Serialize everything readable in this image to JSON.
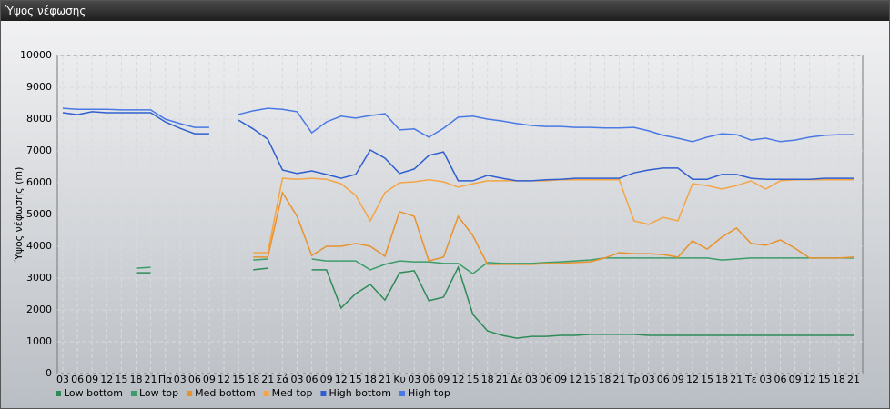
{
  "window": {
    "title": "Ύψος νέφωσης"
  },
  "chart_data": {
    "type": "line",
    "ylabel": "Ύψος νέφωσης (m)",
    "categories": [
      "03",
      "06",
      "09",
      "12",
      "15",
      "18",
      "21",
      "Πα",
      "03",
      "06",
      "09",
      "12",
      "15",
      "18",
      "21",
      "Σά",
      "03",
      "06",
      "09",
      "12",
      "15",
      "18",
      "21",
      "Κυ",
      "03",
      "06",
      "09",
      "12",
      "15",
      "18",
      "21",
      "Δε",
      "03",
      "06",
      "09",
      "12",
      "15",
      "18",
      "21",
      "Τρ",
      "03",
      "06",
      "09",
      "12",
      "15",
      "18",
      "21",
      "Τε",
      "03",
      "06",
      "09",
      "12",
      "15",
      "18",
      "21"
    ],
    "ylim": [
      0,
      10000
    ],
    "yticks": [
      0,
      1000,
      2000,
      3000,
      4000,
      5000,
      6000,
      7000,
      8000,
      9000,
      10000
    ],
    "grid": true,
    "series": [
      {
        "name": "Low bottom",
        "color": "#2e8b57",
        "values": [
          null,
          null,
          null,
          null,
          null,
          3170,
          3170,
          null,
          null,
          null,
          null,
          null,
          null,
          3260,
          3310,
          null,
          null,
          3260,
          3260,
          2060,
          2510,
          2800,
          2310,
          3170,
          3230,
          2290,
          2400,
          3340,
          1860,
          1340,
          1200,
          1110,
          1170,
          1170,
          1200,
          1200,
          1230,
          1230,
          1230,
          1230,
          1200,
          1200,
          1200,
          1200,
          1200,
          1200,
          1200,
          1200,
          1200,
          1200,
          1200,
          1200,
          1200,
          1200,
          1200
        ]
      },
      {
        "name": "Low top",
        "color": "#3a9d6a",
        "values": [
          null,
          null,
          null,
          null,
          null,
          3310,
          3340,
          null,
          null,
          null,
          null,
          null,
          null,
          3570,
          3600,
          null,
          null,
          3600,
          3540,
          3540,
          3540,
          3260,
          3430,
          3540,
          3510,
          3510,
          3460,
          3460,
          3140,
          3490,
          3460,
          3460,
          3460,
          3490,
          3510,
          3540,
          3570,
          3630,
          3630,
          3630,
          3630,
          3630,
          3630,
          3630,
          3630,
          3570,
          3600,
          3630,
          3630,
          3630,
          3630,
          3630,
          3630,
          3630,
          3630
        ]
      },
      {
        "name": "Med bottom",
        "color": "#e8922e",
        "values": [
          null,
          null,
          null,
          null,
          null,
          null,
          null,
          null,
          null,
          null,
          null,
          null,
          null,
          3660,
          3660,
          5690,
          4940,
          3710,
          4000,
          4000,
          4090,
          4000,
          3690,
          5090,
          4940,
          3540,
          3660,
          4940,
          4340,
          3430,
          3430,
          3430,
          3430,
          3460,
          3460,
          3490,
          3510,
          3630,
          3800,
          3770,
          3770,
          3740,
          3660,
          4170,
          3910,
          4290,
          4570,
          4090,
          4030,
          4200,
          3940,
          3630,
          3630,
          3630,
          3660
        ]
      },
      {
        "name": "Med top",
        "color": "#f4a445",
        "values": [
          null,
          null,
          null,
          null,
          null,
          null,
          null,
          null,
          null,
          null,
          null,
          null,
          null,
          3800,
          3800,
          6140,
          6110,
          6140,
          6110,
          5970,
          5600,
          4800,
          5690,
          6000,
          6030,
          6090,
          6030,
          5860,
          5970,
          6060,
          6060,
          6060,
          6060,
          6060,
          6090,
          6090,
          6090,
          6090,
          6090,
          4800,
          4690,
          4910,
          4800,
          5970,
          5910,
          5800,
          5910,
          6060,
          5800,
          6060,
          6090,
          6090,
          6090,
          6090,
          6090
        ]
      },
      {
        "name": "High bottom",
        "color": "#2f5fd0",
        "values": [
          8200,
          8140,
          8230,
          8200,
          8200,
          8200,
          8200,
          7910,
          7710,
          7540,
          7540,
          null,
          7970,
          7690,
          7370,
          6400,
          6290,
          6370,
          6260,
          6140,
          6260,
          7030,
          6770,
          6290,
          6430,
          6860,
          6970,
          6060,
          6060,
          6230,
          6140,
          6060,
          6060,
          6090,
          6110,
          6140,
          6140,
          6140,
          6140,
          6310,
          6400,
          6460,
          6460,
          6110,
          6110,
          6260,
          6260,
          6140,
          6110,
          6110,
          6110,
          6110,
          6140,
          6140,
          6140
        ]
      },
      {
        "name": "High top",
        "color": "#4a78e4",
        "values": [
          8340,
          8310,
          8310,
          8310,
          8290,
          8290,
          8290,
          8000,
          7860,
          7740,
          7740,
          null,
          8150,
          8260,
          8340,
          8310,
          8230,
          7570,
          7910,
          8090,
          8030,
          8110,
          8170,
          7660,
          7690,
          7430,
          7710,
          8060,
          8090,
          8000,
          7940,
          7860,
          7800,
          7770,
          7770,
          7740,
          7740,
          7720,
          7720,
          7740,
          7630,
          7490,
          7400,
          7290,
          7430,
          7540,
          7510,
          7340,
          7400,
          7290,
          7340,
          7430,
          7490,
          7510,
          7510
        ]
      }
    ]
  }
}
